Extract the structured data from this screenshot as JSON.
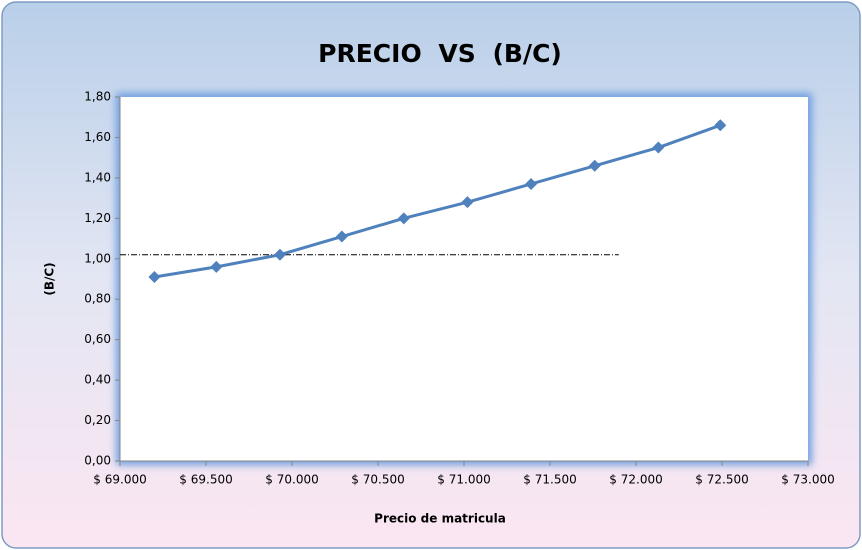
{
  "chart_data": {
    "type": "line",
    "title": "PRECIO VS (B/C)",
    "x_label": "Precio de matricula",
    "y_label": "(B/C)",
    "x": [
      69200,
      69560,
      69930,
      70290,
      70650,
      71020,
      71390,
      71760,
      72130,
      72490
    ],
    "values": [
      0.91,
      0.96,
      1.02,
      1.11,
      1.2,
      1.28,
      1.37,
      1.46,
      1.55,
      1.66
    ],
    "color": "#4f81bd",
    "reference_line": {
      "value": 1.02,
      "x": [
        69000,
        71900
      ],
      "color": "#000000"
    },
    "xlim": [
      69000,
      73000
    ],
    "xticks": [
      {
        "value": 69000,
        "label": "$ 69.000"
      },
      {
        "value": 69500,
        "label": "$ 69.500"
      },
      {
        "value": 70000,
        "label": "$ 70.000"
      },
      {
        "value": 70500,
        "label": "$ 70.500"
      },
      {
        "value": 71000,
        "label": "$ 71.000"
      },
      {
        "value": 71500,
        "label": "$ 71.500"
      },
      {
        "value": 72000,
        "label": "$ 72.000"
      },
      {
        "value": 72500,
        "label": "$ 72.500"
      },
      {
        "value": 73000,
        "label": "$ 73.000"
      }
    ],
    "ylim": [
      0,
      1.8
    ],
    "yticks": [
      {
        "value": 0,
        "label": "0,00"
      },
      {
        "value": 0.2,
        "label": "0,20"
      },
      {
        "value": 0.4,
        "label": "0,40"
      },
      {
        "value": 0.6,
        "label": "0,60"
      },
      {
        "value": 0.8,
        "label": "0,80"
      },
      {
        "value": 1.0,
        "label": "1,00"
      },
      {
        "value": 1.2,
        "label": "1,20"
      },
      {
        "value": 1.4,
        "label": "1,40"
      },
      {
        "value": 1.6,
        "label": "1,60"
      },
      {
        "value": 1.8,
        "label": "1,80"
      }
    ],
    "grid": false
  }
}
